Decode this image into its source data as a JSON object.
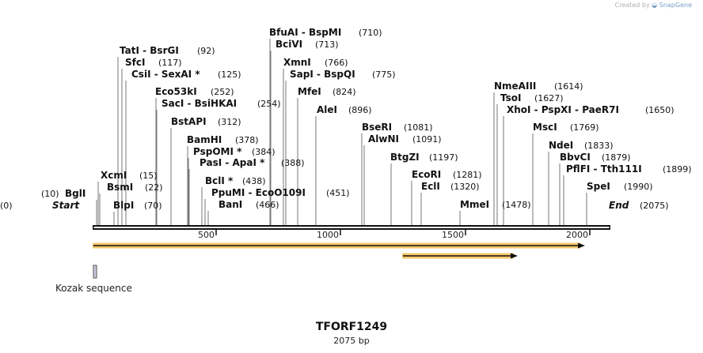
{
  "credit": {
    "prefix": "Created by",
    "brand": "SnapGene"
  },
  "sequence": {
    "name": "TFORF1249",
    "length_label": "2075 bp",
    "length": 2075
  },
  "ruler": {
    "ticks": [
      "500",
      "1000",
      "1500",
      "2000"
    ]
  },
  "features": [
    {
      "name": "Kozak sequence",
      "type": "misc_feature"
    }
  ],
  "enzymes": [
    {
      "label": "Start",
      "pos": "(0)",
      "italic": true
    },
    {
      "label": "BglI",
      "pos": "(10)"
    },
    {
      "label": "XcmI",
      "pos": "(15)"
    },
    {
      "label": "BsmI",
      "pos": "(22)"
    },
    {
      "label": "BlpI",
      "pos": "(70)"
    },
    {
      "label": "TatI  -  BsrGI",
      "pos": "(92)"
    },
    {
      "label": "SfcI",
      "pos": "(117)"
    },
    {
      "label": "CsiI  -  SexAI *",
      "pos": "(125)"
    },
    {
      "label": "Eco53kI",
      "pos": "(252)"
    },
    {
      "label": "SacI  -  BsiHKAI",
      "pos": "(254)"
    },
    {
      "label": "BstAPI",
      "pos": "(312)"
    },
    {
      "label": "BamHI",
      "pos": "(378)"
    },
    {
      "label": "PspOMI *",
      "pos": "(384)"
    },
    {
      "label": "PasI  -  ApaI *",
      "pos": "(388)"
    },
    {
      "label": "BclI *",
      "pos": "(438)"
    },
    {
      "label": "PpuMI  -  EcoO109I",
      "pos": "(451)"
    },
    {
      "label": "BanI",
      "pos": "(466)"
    },
    {
      "label": "BfuAI  -  BspMI",
      "pos": "(710)"
    },
    {
      "label": "BciVI",
      "pos": "(713)"
    },
    {
      "label": "XmnI",
      "pos": "(766)"
    },
    {
      "label": "SapI  -  BspQI",
      "pos": "(775)"
    },
    {
      "label": "MfeI",
      "pos": "(824)"
    },
    {
      "label": "AleI",
      "pos": "(896)"
    },
    {
      "label": "BseRI",
      "pos": "(1081)"
    },
    {
      "label": "AlwNI",
      "pos": "(1091)"
    },
    {
      "label": "BtgZI",
      "pos": "(1197)"
    },
    {
      "label": "EcoRI",
      "pos": "(1281)"
    },
    {
      "label": "EclI",
      "pos": "(1320)"
    },
    {
      "label": "MmeI",
      "pos": "(1478)"
    },
    {
      "label": "NmeAIII",
      "pos": "(1614)"
    },
    {
      "label": "TsoI",
      "pos": "(1627)"
    },
    {
      "label": "XhoI  -  PspXI  -  PaeR7I",
      "pos": "(1650)"
    },
    {
      "label": "MscI",
      "pos": "(1769)"
    },
    {
      "label": "NdeI",
      "pos": "(1833)"
    },
    {
      "label": "BbvCI",
      "pos": "(1879)"
    },
    {
      "label": "PflFI  -  Tth111I",
      "pos": "(1899)"
    },
    {
      "label": "SpeI",
      "pos": "(1990)"
    },
    {
      "label": "End",
      "pos": "(2075)",
      "italic": true
    }
  ]
}
